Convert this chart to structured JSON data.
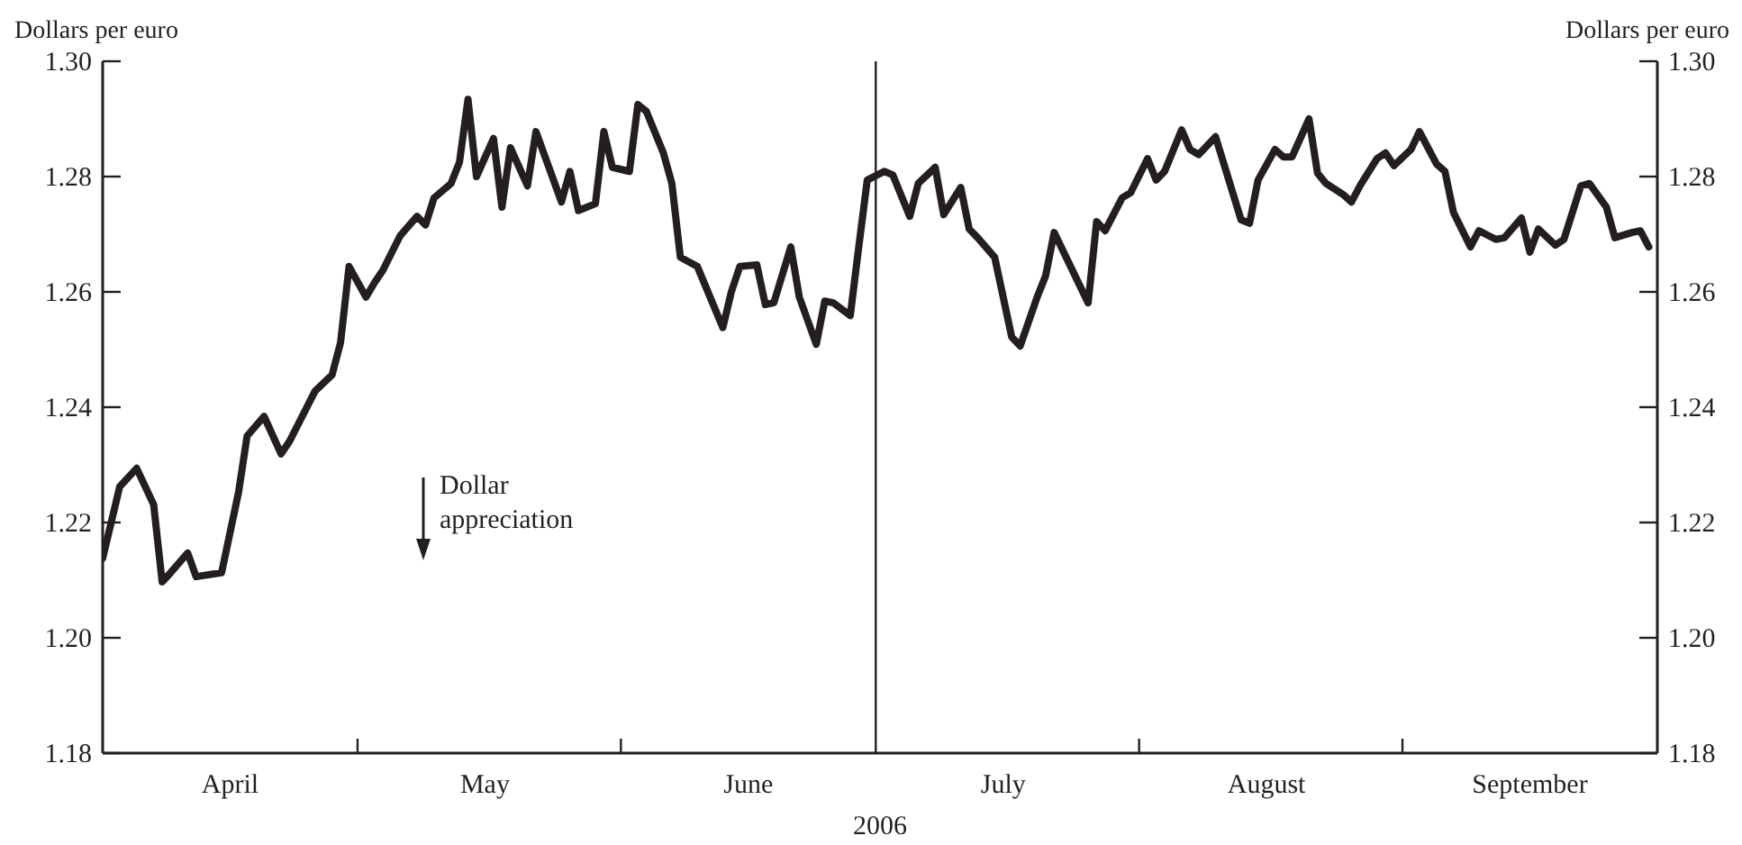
{
  "chart_data": {
    "type": "line",
    "ylabel": "Dollars per euro",
    "y2label": "Dollars per euro",
    "xlabel": "2006",
    "x": [
      "2006-04-01",
      "2006-04-03",
      "2006-04-05",
      "2006-04-07",
      "2006-04-08",
      "2006-04-09",
      "2006-04-11",
      "2006-04-12",
      "2006-04-15",
      "2006-04-17",
      "2006-04-18",
      "2006-04-20",
      "2006-04-22",
      "2006-04-23",
      "2006-04-26",
      "2006-04-28",
      "2006-04-29",
      "2006-04-30",
      "2006-05-02",
      "2006-05-03",
      "2006-05-04",
      "2006-05-06",
      "2006-05-08",
      "2006-05-09",
      "2006-05-10",
      "2006-05-12",
      "2006-05-13",
      "2006-05-14",
      "2006-05-15",
      "2006-05-17",
      "2006-05-18",
      "2006-05-19",
      "2006-05-21",
      "2006-05-22",
      "2006-05-25",
      "2006-05-26",
      "2006-05-27",
      "2006-05-29",
      "2006-05-30",
      "2006-05-31",
      "2006-06-02",
      "2006-06-03",
      "2006-06-04",
      "2006-06-06",
      "2006-06-07",
      "2006-06-08",
      "2006-06-10",
      "2006-06-13",
      "2006-06-14",
      "2006-06-15",
      "2006-06-17",
      "2006-06-18",
      "2006-06-19",
      "2006-06-21",
      "2006-06-22",
      "2006-06-24",
      "2006-06-25",
      "2006-06-26",
      "2006-06-28",
      "2006-06-29",
      "2006-06-30",
      "2006-07-02",
      "2006-07-03",
      "2006-07-05",
      "2006-07-06",
      "2006-07-08",
      "2006-07-09",
      "2006-07-11",
      "2006-07-12",
      "2006-07-13",
      "2006-07-15",
      "2006-07-17",
      "2006-07-18",
      "2006-07-20",
      "2006-07-21",
      "2006-07-22",
      "2006-07-26",
      "2006-07-27",
      "2006-07-28",
      "2006-07-30",
      "2006-07-31",
      "2006-08-02",
      "2006-08-03",
      "2006-08-04",
      "2006-08-06",
      "2006-08-07",
      "2006-08-08",
      "2006-08-10",
      "2006-08-13",
      "2006-08-14",
      "2006-08-15",
      "2006-08-17",
      "2006-08-18",
      "2006-08-19",
      "2006-08-21",
      "2006-08-22",
      "2006-08-23",
      "2006-08-25",
      "2006-08-26",
      "2006-08-27",
      "2006-08-29",
      "2006-08-30",
      "2006-08-31",
      "2006-09-02",
      "2006-09-03",
      "2006-09-05",
      "2006-09-06",
      "2006-09-07",
      "2006-09-09",
      "2006-09-10",
      "2006-09-12",
      "2006-09-13",
      "2006-09-15",
      "2006-09-16",
      "2006-09-17",
      "2006-09-19",
      "2006-09-20",
      "2006-09-22",
      "2006-09-23",
      "2006-09-25",
      "2006-09-26",
      "2006-09-28",
      "2006-09-29",
      "2006-09-30"
    ],
    "series": [
      {
        "color": "#231f20",
        "values": [
          1.2138,
          1.2262,
          1.2294,
          1.2231,
          1.2097,
          1.2113,
          1.2147,
          1.2106,
          1.2113,
          1.2253,
          1.235,
          1.2384,
          1.2319,
          1.2341,
          1.2428,
          1.2456,
          1.2512,
          1.2644,
          1.2591,
          1.2616,
          1.2638,
          1.2697,
          1.2731,
          1.2716,
          1.2763,
          1.2788,
          1.2825,
          1.2934,
          1.28,
          1.2866,
          1.2747,
          1.285,
          1.2784,
          1.2878,
          1.2756,
          1.2809,
          1.2741,
          1.2753,
          1.2878,
          1.2816,
          1.2809,
          1.2925,
          1.2913,
          1.2841,
          1.2788,
          1.266,
          1.2644,
          1.2538,
          1.26,
          1.2644,
          1.2647,
          1.2578,
          1.2581,
          1.2678,
          1.2591,
          1.2509,
          1.2584,
          1.2581,
          1.2559,
          1.2678,
          1.2794,
          1.2809,
          1.2803,
          1.2731,
          1.2788,
          1.2816,
          1.2734,
          1.2781,
          1.2709,
          1.2694,
          1.266,
          1.2522,
          1.2506,
          1.2591,
          1.2628,
          1.2703,
          1.2581,
          1.2722,
          1.2706,
          1.2763,
          1.2772,
          1.2831,
          1.2794,
          1.2809,
          1.2881,
          1.2847,
          1.2838,
          1.2869,
          1.2725,
          1.2719,
          1.2794,
          1.2847,
          1.2834,
          1.2834,
          1.29,
          1.2806,
          1.2788,
          1.2769,
          1.2756,
          1.2784,
          1.2831,
          1.2841,
          1.2819,
          1.2847,
          1.2878,
          1.2822,
          1.2809,
          1.2738,
          1.2678,
          1.2706,
          1.2691,
          1.2694,
          1.2728,
          1.2669,
          1.2709,
          1.2681,
          1.2691,
          1.2784,
          1.2788,
          1.2747,
          1.2694,
          1.2703,
          1.2706,
          1.2678
        ]
      }
    ],
    "xlim": [
      "2006-04-01",
      "2006-10-01"
    ],
    "xticks": [
      {
        "value": "2006-04-16",
        "label": "April"
      },
      {
        "value": "2006-05-01",
        "label": null
      },
      {
        "value": "2006-05-16",
        "label": "May"
      },
      {
        "value": "2006-06-01",
        "label": null
      },
      {
        "value": "2006-06-16",
        "label": "June"
      },
      {
        "value": "2006-07-16",
        "label": "July"
      },
      {
        "value": "2006-08-01",
        "label": null
      },
      {
        "value": "2006-08-16",
        "label": "August"
      },
      {
        "value": "2006-09-01",
        "label": null
      },
      {
        "value": "2006-09-16",
        "label": "September"
      }
    ],
    "ylim": [
      1.18,
      1.3
    ],
    "yticks": [
      1.18,
      {
        "value": 1.2,
        "label": "1.20"
      },
      1.22,
      1.24,
      1.26,
      1.28,
      {
        "value": 1.3,
        "label": "1.30"
      }
    ],
    "y2lim": [
      1.18,
      1.3
    ],
    "y2ticks": [
      1.18,
      {
        "value": 1.2,
        "label": "1.20"
      },
      1.22,
      1.24,
      1.26,
      1.28,
      {
        "value": 1.3,
        "label": "1.30"
      }
    ],
    "ref_lines": [
      {
        "axis": "x",
        "value": "2006-07-01",
        "color": "#231f20"
      }
    ],
    "annotations": [
      "Dollar appreciation"
    ]
  }
}
